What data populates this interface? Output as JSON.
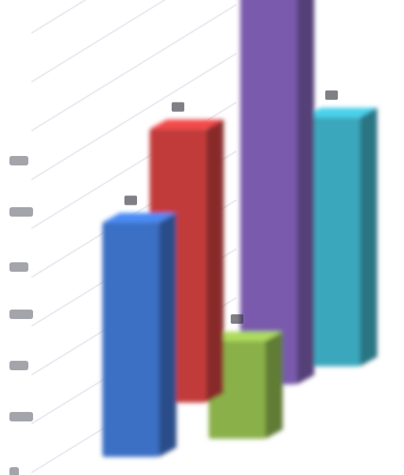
{
  "chart_data": {
    "type": "bar",
    "three_d": true,
    "grid": true,
    "legend": "none",
    "values": [
      240,
      280,
      450,
      100,
      255
    ],
    "colors": [
      "#3a6fc4",
      "#c23a3a",
      "#7a5aac",
      "#8ab04a",
      "#3aa7bd"
    ],
    "ylim": [
      0,
      500
    ]
  }
}
